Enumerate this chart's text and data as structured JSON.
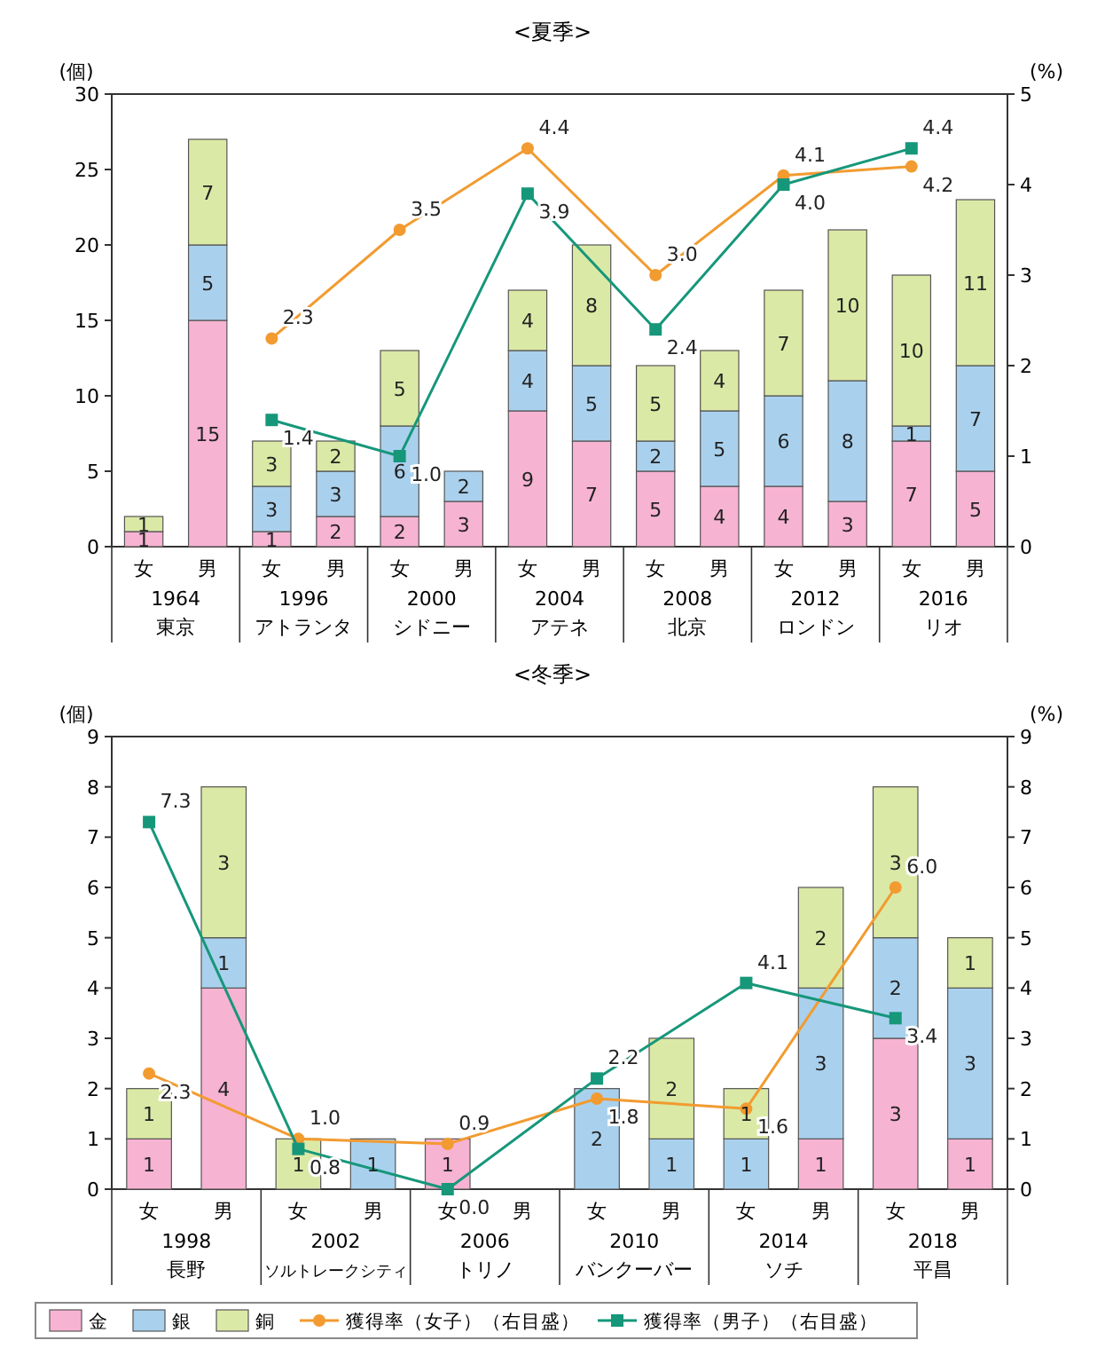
{
  "chart_data": [
    {
      "type": "bar",
      "title": "<夏季>",
      "ylabel": "(個)",
      "y2label": "(%)",
      "stacked": true,
      "legend": false,
      "grid": false,
      "categories": [
        "女",
        "男",
        "女",
        "男",
        "女",
        "男",
        "女",
        "男",
        "女",
        "男",
        "女",
        "男",
        "女",
        "男"
      ],
      "annotations": [
        "1964",
        "東京",
        "1996",
        "アトランタ",
        "2000",
        "シドニー",
        "2004",
        "アテネ",
        "2008",
        "北京",
        "2012",
        "ロンドン",
        "2016",
        "リオ"
      ],
      "ylim": [
        0,
        30
      ],
      "yticks": [
        0,
        5,
        10,
        15,
        20,
        25,
        30
      ],
      "y2lim": [
        0,
        5
      ],
      "y2ticks": [
        0,
        1,
        2,
        3,
        4,
        5
      ],
      "series": [
        {
          "color": "#f7b3d2",
          "values": [
            1,
            15,
            1,
            2,
            2,
            3,
            9,
            7,
            5,
            4,
            4,
            3,
            7,
            5
          ],
          "value_labels": [
            "1",
            "15",
            "1",
            "2",
            "2",
            "3",
            "9",
            "7",
            "5",
            "4",
            "4",
            "3",
            "7",
            "5"
          ]
        },
        {
          "color": "#a9d1ee",
          "values": [
            0,
            5,
            3,
            3,
            6,
            2,
            4,
            5,
            2,
            5,
            6,
            8,
            1,
            7
          ],
          "value_labels": [
            null,
            "5",
            "3",
            "3",
            "6",
            "2",
            "4",
            "5",
            "2",
            "5",
            "6",
            "8",
            "1",
            "7"
          ]
        },
        {
          "color": "#dbe9a6",
          "values": [
            1,
            7,
            3,
            2,
            5,
            0,
            4,
            8,
            5,
            4,
            7,
            10,
            10,
            11
          ],
          "value_labels": [
            "1",
            "7",
            "3",
            "2",
            "5",
            null,
            "4",
            "8",
            "5",
            "4",
            "7",
            "10",
            "10",
            "11"
          ]
        },
        {
          "type": "line",
          "axis": "y2",
          "marker": "circle",
          "color": "#f29b30",
          "values": [
            null,
            null,
            2.3,
            null,
            3.5,
            null,
            4.4,
            null,
            3.0,
            null,
            4.1,
            null,
            4.2,
            null
          ],
          "value_labels": [
            null,
            null,
            "2.3",
            null,
            "3.5",
            null,
            "4.4",
            null,
            "3.0",
            null,
            "4.1",
            null,
            "4.2",
            null
          ]
        },
        {
          "type": "line",
          "axis": "y2",
          "marker": "square",
          "color": "#16977a",
          "values": [
            null,
            null,
            1.4,
            null,
            1.0,
            null,
            3.9,
            null,
            2.4,
            null,
            4.0,
            null,
            4.4,
            null
          ],
          "value_labels": [
            null,
            null,
            "1.4",
            null,
            "1.0",
            null,
            "3.9",
            null,
            "2.4",
            null,
            "4.0",
            null,
            "4.4",
            null
          ]
        }
      ]
    },
    {
      "type": "bar",
      "title": "<冬季>",
      "ylabel": "(個)",
      "y2label": "(%)",
      "stacked": true,
      "legend": "bottom",
      "grid": false,
      "categories": [
        "女",
        "男",
        "女",
        "男",
        "女",
        "男",
        "女",
        "男",
        "女",
        "男",
        "女",
        "男"
      ],
      "annotations": [
        "1998",
        "長野",
        "2002",
        "ソルトレークシティ",
        "2006",
        "トリノ",
        "2010",
        "バンクーバー",
        "2014",
        "ソチ",
        "2018",
        "平昌"
      ],
      "ylim": [
        0,
        9
      ],
      "yticks": [
        0,
        1,
        2,
        3,
        4,
        5,
        6,
        7,
        8,
        9
      ],
      "y2lim": [
        0,
        9
      ],
      "y2ticks": [
        0,
        1,
        2,
        3,
        4,
        5,
        6,
        7,
        8,
        9
      ],
      "series": [
        {
          "name": "金",
          "color": "#f7b3d2",
          "values": [
            1,
            4,
            0,
            0,
            1,
            0,
            0,
            0,
            0,
            1,
            3,
            1
          ],
          "value_labels": [
            "1",
            "4",
            null,
            null,
            "1",
            null,
            null,
            null,
            null,
            "1",
            "3",
            "1"
          ]
        },
        {
          "name": "銀",
          "color": "#a9d1ee",
          "values": [
            0,
            1,
            0,
            1,
            0,
            0,
            2,
            1,
            1,
            3,
            2,
            3
          ],
          "value_labels": [
            null,
            "1",
            null,
            "1",
            null,
            null,
            "2",
            "1",
            "1",
            "3",
            "2",
            "3"
          ]
        },
        {
          "name": "銅",
          "color": "#dbe9a6",
          "values": [
            1,
            3,
            1,
            0,
            0,
            0,
            0,
            2,
            1,
            2,
            3,
            1
          ],
          "value_labels": [
            "1",
            "3",
            "1",
            null,
            null,
            null,
            null,
            "2",
            "1",
            "2",
            "3",
            "1"
          ]
        },
        {
          "name": "獲得率（女子）（右目盛）",
          "type": "line",
          "axis": "y2",
          "marker": "circle",
          "color": "#f29b30",
          "values": [
            2.3,
            null,
            1.0,
            null,
            0.9,
            null,
            1.8,
            null,
            1.6,
            null,
            6.0,
            null
          ],
          "value_labels": [
            "2.3",
            null,
            "1.0",
            null,
            "0.9",
            null,
            "1.8",
            null,
            "1.6",
            null,
            "6.0",
            null
          ]
        },
        {
          "name": "獲得率（男子）（右目盛）",
          "type": "line",
          "axis": "y2",
          "marker": "square",
          "color": "#16977a",
          "values": [
            7.3,
            null,
            0.8,
            null,
            0,
            null,
            2.2,
            null,
            4.1,
            null,
            3.4,
            null
          ],
          "value_labels": [
            "7.3",
            null,
            "0.8",
            null,
            "0.0",
            null,
            "2.2",
            null,
            "4.1",
            null,
            "3.4",
            null
          ]
        }
      ]
    }
  ]
}
